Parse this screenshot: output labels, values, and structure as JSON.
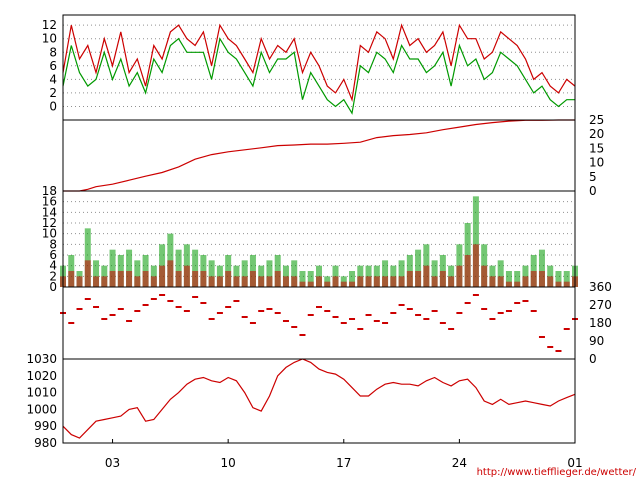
{
  "credit": "http://www.tiefflieger.de/wetter/",
  "x_axis": {
    "ticks": [
      {
        "day": 3,
        "label": "03"
      },
      {
        "day": 10,
        "label": "10"
      },
      {
        "day": 17,
        "label": "17"
      },
      {
        "day": 24,
        "label": "24"
      },
      {
        "day": 31,
        "label": "01"
      }
    ],
    "range": [
      0,
      31
    ]
  },
  "chart_data": [
    {
      "type": "line",
      "panel": "temperature",
      "ylim": [
        -2,
        13.5
      ],
      "y_ticks": [
        0,
        2,
        4,
        6,
        8,
        10,
        12
      ],
      "grid": true,
      "series": [
        {
          "color": "#cc0000",
          "x": [
            0,
            0.5,
            1,
            1.5,
            2,
            2.5,
            3,
            3.5,
            4,
            4.5,
            5,
            5.5,
            6,
            6.5,
            7,
            7.5,
            8,
            8.5,
            9,
            9.5,
            10,
            10.5,
            11,
            11.5,
            12,
            12.5,
            13,
            13.5,
            14,
            14.5,
            15,
            15.5,
            16,
            16.5,
            17,
            17.5,
            18,
            18.5,
            19,
            19.5,
            20,
            20.5,
            21,
            21.5,
            22,
            22.5,
            23,
            23.5,
            24,
            24.5,
            25,
            25.5,
            26,
            26.5,
            27,
            27.5,
            28,
            28.5,
            29,
            29.5,
            30,
            30.5,
            31
          ],
          "y": [
            5,
            12,
            7,
            9,
            5,
            10,
            6,
            11,
            5,
            7,
            3,
            9,
            7,
            11,
            12,
            10,
            9,
            11,
            6,
            12,
            10,
            9,
            7,
            5,
            10,
            7,
            9,
            8,
            10,
            5,
            8,
            6,
            3,
            2,
            4,
            1,
            9,
            8,
            11,
            10,
            7,
            12,
            9,
            10,
            8,
            9,
            11,
            6,
            12,
            10,
            10,
            7,
            8,
            11,
            10,
            9,
            7,
            4,
            5,
            3,
            2,
            4,
            3
          ]
        },
        {
          "color": "#009900",
          "x": [
            0,
            0.5,
            1,
            1.5,
            2,
            2.5,
            3,
            3.5,
            4,
            4.5,
            5,
            5.5,
            6,
            6.5,
            7,
            7.5,
            8,
            8.5,
            9,
            9.5,
            10,
            10.5,
            11,
            11.5,
            12,
            12.5,
            13,
            13.5,
            14,
            14.5,
            15,
            15.5,
            16,
            16.5,
            17,
            17.5,
            18,
            18.5,
            19,
            19.5,
            20,
            20.5,
            21,
            21.5,
            22,
            22.5,
            23,
            23.5,
            24,
            24.5,
            25,
            25.5,
            26,
            26.5,
            27,
            27.5,
            28,
            28.5,
            29,
            29.5,
            30,
            30.5,
            31
          ],
          "y": [
            3,
            9,
            5,
            3,
            4,
            8,
            4,
            7,
            3,
            5,
            2,
            7,
            5,
            9,
            10,
            8,
            8,
            8,
            4,
            10,
            8,
            7,
            5,
            3,
            8,
            5,
            7,
            7,
            8,
            1,
            5,
            3,
            1,
            0,
            1,
            -1,
            6,
            5,
            8,
            7,
            5,
            9,
            7,
            7,
            5,
            6,
            8,
            3,
            9,
            6,
            7,
            4,
            5,
            8,
            7,
            6,
            4,
            2,
            3,
            1,
            0,
            1,
            1
          ]
        }
      ]
    },
    {
      "type": "line",
      "panel": "precipitation",
      "ylim": [
        0,
        25
      ],
      "y_ticks": [
        0,
        5,
        10,
        15,
        20,
        25
      ],
      "grid": false,
      "series": [
        {
          "color": "#cc0000",
          "x": [
            0,
            1,
            1.5,
            2,
            3,
            4,
            5,
            6,
            7,
            8,
            9,
            10,
            11,
            12,
            13,
            14,
            15,
            16,
            17,
            18,
            19,
            20,
            21,
            22,
            23,
            24,
            25,
            26,
            27,
            28,
            29,
            30,
            31
          ],
          "y": [
            0,
            0,
            0.6,
            1.5,
            2.4,
            3.8,
            5.2,
            6.5,
            8.5,
            11.2,
            12.8,
            13.8,
            14.5,
            15.2,
            16,
            16.2,
            16.5,
            16.5,
            16.8,
            17.2,
            18.8,
            19.5,
            19.9,
            20.5,
            21.6,
            22.5,
            23.4,
            24.1,
            24.6,
            24.9,
            24.9,
            25,
            25
          ]
        }
      ]
    },
    {
      "type": "scatter",
      "panel": "wind_speed",
      "ylim": [
        0,
        18
      ],
      "y_ticks": [
        0,
        2,
        4,
        6,
        8,
        10,
        12,
        14,
        16,
        18
      ],
      "grid": true,
      "series": [
        {
          "color": "#009900",
          "x": [
            0,
            0.5,
            1,
            1.5,
            2,
            2.5,
            3,
            3.5,
            4,
            4.5,
            5,
            5.5,
            6,
            6.5,
            7,
            7.5,
            8,
            8.5,
            9,
            9.5,
            10,
            10.5,
            11,
            11.5,
            12,
            12.5,
            13,
            13.5,
            14,
            14.5,
            15,
            15.5,
            16,
            16.5,
            17,
            17.5,
            18,
            18.5,
            19,
            19.5,
            20,
            20.5,
            21,
            21.5,
            22,
            22.5,
            23,
            23.5,
            24,
            24.5,
            25,
            25.5,
            26,
            26.5,
            27,
            27.5,
            28,
            28.5,
            29,
            29.5,
            30,
            30.5,
            31
          ],
          "y": [
            4,
            6,
            3,
            11,
            5,
            4,
            7,
            6,
            7,
            5,
            6,
            4,
            8,
            10,
            7,
            8,
            7,
            6,
            5,
            4,
            6,
            4,
            5,
            6,
            4,
            5,
            6,
            4,
            5,
            3,
            3,
            4,
            2,
            4,
            2,
            3,
            4,
            4,
            4,
            5,
            4,
            5,
            6,
            7,
            8,
            5,
            6,
            4,
            8,
            12,
            17,
            8,
            4,
            5,
            3,
            3,
            4,
            6,
            7,
            4,
            3,
            3,
            4
          ]
        },
        {
          "color": "#cc0000",
          "x": [
            0,
            0.5,
            1,
            1.5,
            2,
            2.5,
            3,
            3.5,
            4,
            4.5,
            5,
            5.5,
            6,
            6.5,
            7,
            7.5,
            8,
            8.5,
            9,
            9.5,
            10,
            10.5,
            11,
            11.5,
            12,
            12.5,
            13,
            13.5,
            14,
            14.5,
            15,
            15.5,
            16,
            16.5,
            17,
            17.5,
            18,
            18.5,
            19,
            19.5,
            20,
            20.5,
            21,
            21.5,
            22,
            22.5,
            23,
            23.5,
            24,
            24.5,
            25,
            25.5,
            26,
            26.5,
            27,
            27.5,
            28,
            28.5,
            29,
            29.5,
            30,
            30.5,
            31
          ],
          "y": [
            2,
            3,
            2,
            5,
            2,
            2,
            3,
            3,
            3,
            2,
            3,
            2,
            4,
            5,
            3,
            4,
            3,
            3,
            2,
            2,
            3,
            2,
            2,
            3,
            2,
            2,
            3,
            2,
            2,
            1,
            1,
            2,
            1,
            2,
            1,
            1,
            2,
            2,
            2,
            2,
            2,
            2,
            3,
            3,
            4,
            2,
            3,
            2,
            4,
            6,
            8,
            4,
            2,
            2,
            1,
            1,
            2,
            3,
            3,
            2,
            1,
            1,
            2
          ]
        }
      ]
    },
    {
      "type": "scatter",
      "panel": "wind_direction",
      "ylim": [
        0,
        360
      ],
      "y_ticks": [
        0,
        90,
        180,
        270,
        360
      ],
      "grid": false,
      "series": [
        {
          "color": "#cc0000",
          "x": [
            0,
            0.5,
            1,
            1.5,
            2,
            2.5,
            3,
            3.5,
            4,
            4.5,
            5,
            5.5,
            6,
            6.5,
            7,
            7.5,
            8,
            8.5,
            9,
            9.5,
            10,
            10.5,
            11,
            11.5,
            12,
            12.5,
            13,
            13.5,
            14,
            14.5,
            15,
            15.5,
            16,
            16.5,
            17,
            17.5,
            18,
            18.5,
            19,
            19.5,
            20,
            20.5,
            21,
            21.5,
            22,
            22.5,
            23,
            23.5,
            24,
            24.5,
            25,
            25.5,
            26,
            26.5,
            27,
            27.5,
            28,
            28.5,
            29,
            29.5,
            30,
            30.5,
            31
          ],
          "y": [
            230,
            180,
            250,
            300,
            260,
            200,
            220,
            250,
            190,
            240,
            270,
            300,
            320,
            290,
            260,
            240,
            310,
            280,
            200,
            230,
            260,
            290,
            210,
            180,
            240,
            250,
            230,
            190,
            160,
            120,
            220,
            260,
            240,
            210,
            180,
            200,
            150,
            220,
            190,
            180,
            230,
            270,
            250,
            220,
            200,
            240,
            180,
            150,
            230,
            280,
            320,
            250,
            200,
            230,
            240,
            280,
            290,
            240,
            110,
            60,
            40,
            150,
            200
          ]
        }
      ]
    },
    {
      "type": "line",
      "panel": "pressure",
      "ylim": [
        980,
        1030
      ],
      "y_ticks": [
        980,
        990,
        1000,
        1010,
        1020,
        1030
      ],
      "grid": false,
      "series": [
        {
          "color": "#cc0000",
          "x": [
            0,
            0.5,
            1,
            1.5,
            2,
            2.5,
            3,
            3.5,
            4,
            4.5,
            5,
            5.5,
            6,
            6.5,
            7,
            7.5,
            8,
            8.5,
            9,
            9.5,
            10,
            10.5,
            11,
            11.5,
            12,
            12.5,
            13,
            13.5,
            14,
            14.5,
            15,
            15.5,
            16,
            16.5,
            17,
            17.5,
            18,
            18.5,
            19,
            19.5,
            20,
            20.5,
            21,
            21.5,
            22,
            22.5,
            23,
            23.5,
            24,
            24.5,
            25,
            25.5,
            26,
            26.5,
            27,
            27.5,
            28,
            28.5,
            29,
            29.5,
            30,
            30.5,
            31
          ],
          "y": [
            990,
            985,
            983,
            988,
            993,
            994,
            995,
            996,
            1000,
            1001,
            993,
            994,
            1000,
            1006,
            1010,
            1015,
            1018,
            1019,
            1017,
            1016,
            1019,
            1017,
            1010,
            1001,
            999,
            1008,
            1020,
            1025,
            1028,
            1030,
            1028,
            1024,
            1022,
            1021,
            1018,
            1013,
            1008,
            1008,
            1012,
            1015,
            1016,
            1015,
            1015,
            1014,
            1017,
            1019,
            1016,
            1014,
            1017,
            1018,
            1013,
            1005,
            1003,
            1006,
            1003,
            1004,
            1005,
            1004,
            1003,
            1002,
            1005,
            1007,
            1009
          ]
        }
      ]
    }
  ]
}
